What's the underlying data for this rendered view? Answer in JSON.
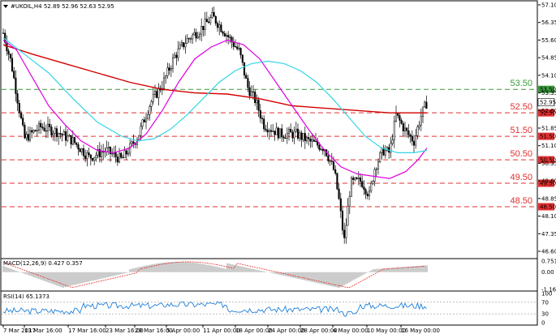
{
  "chart": {
    "header": "#UKOIL,H4  52.89 52.96 52.63 52.95",
    "price_ticks": [
      "57.10",
      "56.35",
      "55.60",
      "54.85",
      "54.10",
      "53.35",
      "52.60",
      "51.85",
      "51.10",
      "50.35",
      "49.60",
      "48.85",
      "48.10",
      "47.35",
      "46.60"
    ],
    "current_price_label": "52.95",
    "levels": [
      {
        "label": "53.50",
        "tag": "53.50",
        "value": 53.5,
        "color": "#3a9a3a",
        "dash": "6,4"
      },
      {
        "label": "52.50",
        "tag": "52.50",
        "value": 52.5,
        "color": "#e23030",
        "dash": "6,4"
      },
      {
        "label": "51.50",
        "tag": "51.50",
        "value": 51.5,
        "color": "#e23030",
        "dash": "6,4"
      },
      {
        "label": "50.50",
        "tag": "50.50",
        "value": 50.5,
        "color": "#e23030",
        "dash": "6,4"
      },
      {
        "label": "49.50",
        "tag": "49.50",
        "value": 49.5,
        "color": "#e23030",
        "dash": "6,4"
      },
      {
        "label": "48.50",
        "tag": "48.50",
        "value": 48.5,
        "color": "#e23030",
        "dash": "6,4"
      }
    ],
    "date_labels": [
      "7 Mar 2017",
      "13 Mar 16:00",
      "17 Mar 16:00",
      "23 Mar 16:00",
      "29 Mar 16:00",
      "5 Apr 00:00",
      "11 Apr 00:00",
      "18 Apr 00:00",
      "24 Apr 00:00",
      "28 Apr 00:00",
      "4 May 00:00",
      "10 May 00:00",
      "16 May 00:00"
    ]
  },
  "macd": {
    "label": "MACD(12,26,9) 0.427 0.357",
    "ticks": [
      "0.751",
      "0.00",
      "-1.161"
    ]
  },
  "rsi": {
    "label": "RSI(14) 65.1373",
    "ticks": [
      "100",
      "70",
      "30",
      "0"
    ]
  },
  "colors": {
    "ma_slow": "#d40000",
    "ma_mid": "#e000e0",
    "ma_fast": "#33d6e6",
    "rsi_line": "#1e7fd8",
    "macd_hist": "#9a9a9a",
    "macd_signal": "#e23030"
  }
}
